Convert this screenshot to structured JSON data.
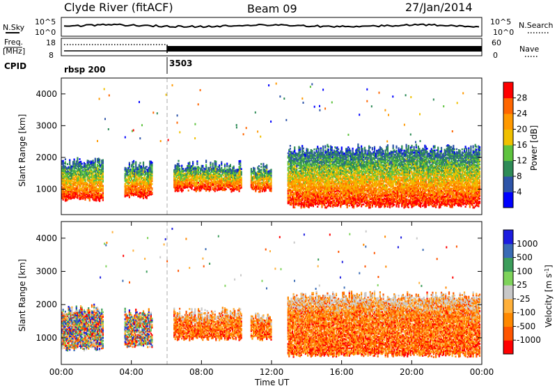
{
  "header": {
    "station": "Clyde River (fitACF)",
    "beam": "Beam 09",
    "date": "27/Jan/2014"
  },
  "strips": {
    "nsky": {
      "label": "N.Sky",
      "left_ticks": [
        "10^5",
        "10^0"
      ],
      "right_ticks": [
        "10^5",
        "10^0"
      ],
      "right_label": "N.Search"
    },
    "freq": {
      "label_line1": "Freq.",
      "label_line2": "[MHz]",
      "left_ticks": [
        "18",
        "8"
      ],
      "right_ticks": [
        "60",
        "0"
      ],
      "right_label": "Nave"
    },
    "cpid": {
      "label": "CPID",
      "entries": [
        {
          "text": "rbsp 200",
          "hour": 0.0
        },
        {
          "text": "3503",
          "hour": 6.0
        }
      ]
    }
  },
  "colors": {
    "power": [
      "#0000ff",
      "#2d54a8",
      "#2e8b57",
      "#5ec33e",
      "#f0c000",
      "#ff9900",
      "#ff6600",
      "#ff0000"
    ],
    "velocity": [
      "#1c1ce0",
      "#3a6bb5",
      "#3c9d5b",
      "#7ed35a",
      "#c8c8c8",
      "#ffb03a",
      "#ff8800",
      "#ff5500",
      "#ff0000"
    ]
  },
  "chart_data": [
    {
      "type": "heatmap",
      "title": "Power",
      "xlabel": "",
      "ylabel": "Slant Range [km]",
      "x_range_hours": [
        0,
        24
      ],
      "ylim": [
        200,
        4500
      ],
      "yticks": [
        1000,
        2000,
        3000,
        4000
      ],
      "colorbar": {
        "label": "Power [dB]",
        "ticks": [
          "4",
          "8",
          "12",
          "16",
          "20",
          "24",
          "28"
        ]
      },
      "regions": [
        {
          "t": [
            0.0,
            2.4
          ],
          "r": [
            600,
            2000
          ],
          "level": "high"
        },
        {
          "t": [
            3.6,
            5.2
          ],
          "r": [
            700,
            1900
          ],
          "level": "medium"
        },
        {
          "t": [
            6.4,
            10.3
          ],
          "r": [
            900,
            1900
          ],
          "level": "medium"
        },
        {
          "t": [
            10.8,
            12.0
          ],
          "r": [
            900,
            1800
          ],
          "level": "medium"
        },
        {
          "t": [
            12.9,
            23.9
          ],
          "r": [
            400,
            2400
          ],
          "level": "high"
        }
      ]
    },
    {
      "type": "heatmap",
      "title": "Velocity",
      "xlabel": "Time UT",
      "ylabel": "Slant Range [km]",
      "x_range_hours": [
        0,
        24
      ],
      "xticks": [
        "00:00",
        "04:00",
        "08:00",
        "12:00",
        "16:00",
        "20:00",
        "00:00"
      ],
      "ylim": [
        200,
        4500
      ],
      "yticks": [
        1000,
        2000,
        3000,
        4000
      ],
      "colorbar": {
        "label": "Velocity [m s^-1]",
        "ticks": [
          "1000",
          "500",
          "100",
          "25",
          "-25",
          "-100",
          "-500",
          "-1000"
        ]
      },
      "regions": [
        {
          "t": [
            0.0,
            2.4
          ],
          "r": [
            600,
            2000
          ],
          "level": "mixed"
        },
        {
          "t": [
            3.6,
            5.2
          ],
          "r": [
            700,
            1900
          ],
          "level": "mixed"
        },
        {
          "t": [
            6.4,
            10.3
          ],
          "r": [
            900,
            1900
          ],
          "level": "negative"
        },
        {
          "t": [
            10.8,
            12.0
          ],
          "r": [
            900,
            1800
          ],
          "level": "negative"
        },
        {
          "t": [
            12.9,
            23.9
          ],
          "r": [
            400,
            2400
          ],
          "level": "negative"
        }
      ]
    }
  ]
}
